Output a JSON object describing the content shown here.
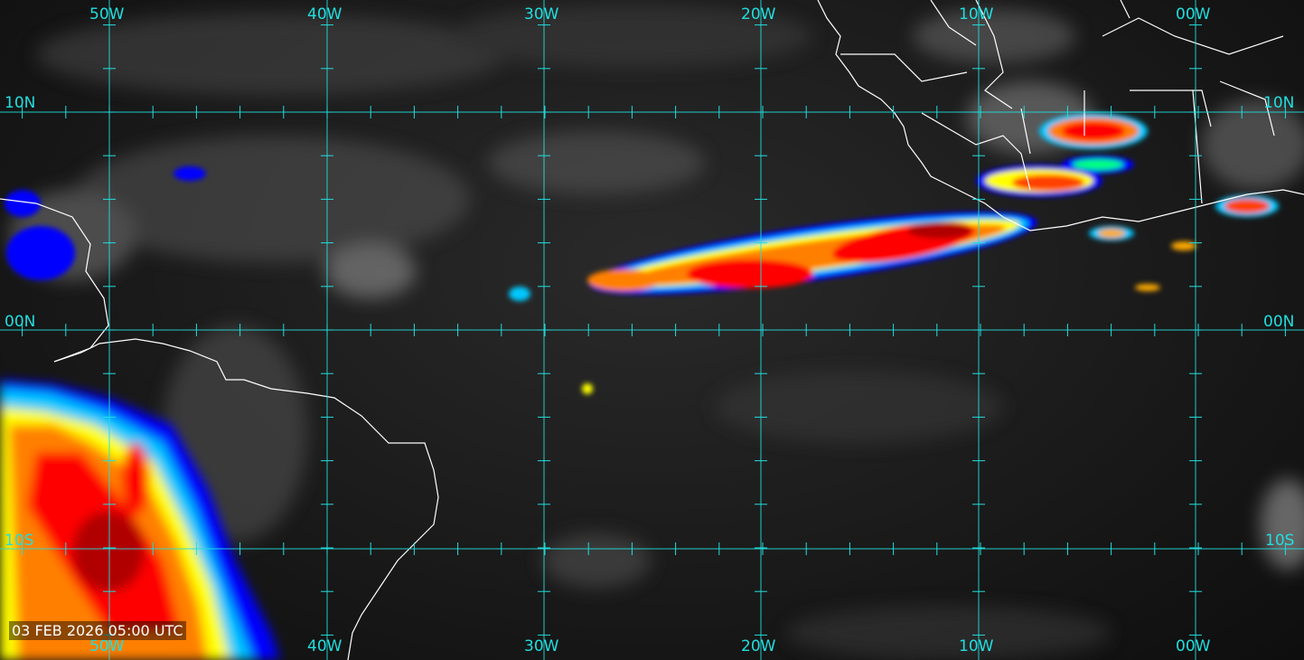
{
  "timestamp": "03 FEB 2026 05:00 UTC",
  "grid_color": "#22dede",
  "coast_color": "#ffffff",
  "longitude_labels": [
    "50W",
    "40W",
    "30W",
    "20W",
    "10W",
    "00W"
  ],
  "latitude_labels_left": [
    "10N",
    "00N",
    "10S"
  ],
  "latitude_labels_right": [
    "10N",
    "00N",
    "10S"
  ],
  "color_scale": [
    "#0000ff",
    "#00c8ff",
    "#00ff80",
    "#ffff00",
    "#ff8000",
    "#ff0000",
    "#b00000"
  ]
}
